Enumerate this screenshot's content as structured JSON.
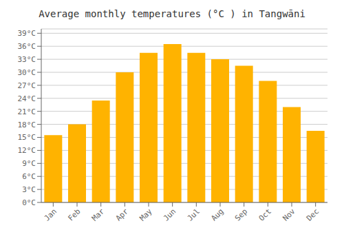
{
  "chart_data": {
    "type": "bar",
    "title": "Average monthly temperatures (°C ) in Tangwāni",
    "categories": [
      "Jan",
      "Feb",
      "Mar",
      "Apr",
      "May",
      "Jun",
      "Jul",
      "Aug",
      "Sep",
      "Oct",
      "Nov",
      "Dec"
    ],
    "values": [
      15.5,
      18.0,
      23.5,
      30.0,
      34.5,
      36.5,
      34.5,
      33.0,
      31.5,
      28.0,
      22.0,
      16.5
    ],
    "color": "#FFB300",
    "ylim": [
      0,
      40
    ],
    "yticks": [
      {
        "value": 0,
        "label": "0°C"
      },
      {
        "value": 3,
        "label": "3°C"
      },
      {
        "value": 6,
        "label": "6°C"
      },
      {
        "value": 9,
        "label": "9°C"
      },
      {
        "value": 12,
        "label": "12°C"
      },
      {
        "value": 15,
        "label": "15°C"
      },
      {
        "value": 18,
        "label": "18°C"
      },
      {
        "value": 21,
        "label": "21°C"
      },
      {
        "value": 24,
        "label": "24°C"
      },
      {
        "value": 27,
        "label": "27°C"
      },
      {
        "value": 30,
        "label": "30°C"
      },
      {
        "value": 33,
        "label": "33°C"
      },
      {
        "value": 36,
        "label": "36°C"
      },
      {
        "value": 39,
        "label": "39°C"
      }
    ],
    "grid": true
  }
}
